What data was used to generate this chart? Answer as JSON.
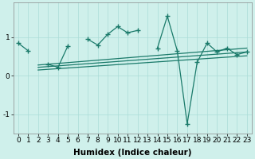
{
  "xlabel": "Humidex (Indice chaleur)",
  "x_data": [
    0,
    1,
    2,
    3,
    4,
    5,
    6,
    7,
    8,
    9,
    10,
    11,
    12,
    13,
    14,
    15,
    16,
    17,
    18,
    19,
    20,
    21,
    22,
    23
  ],
  "y_main": [
    0.85,
    0.65,
    null,
    0.3,
    0.22,
    0.78,
    null,
    0.95,
    0.8,
    1.08,
    1.28,
    1.12,
    1.18,
    null,
    0.72,
    1.55,
    0.65,
    -1.25,
    0.35,
    0.85,
    0.62,
    0.72,
    0.55,
    0.62
  ],
  "trend_lines": [
    {
      "x0": 2,
      "y0": 0.28,
      "x1": 23,
      "y1": 0.72
    },
    {
      "x0": 2,
      "y0": 0.22,
      "x1": 23,
      "y1": 0.62
    },
    {
      "x0": 2,
      "y0": 0.15,
      "x1": 23,
      "y1": 0.52
    }
  ],
  "ylim": [
    -1.5,
    1.9
  ],
  "yticks": [
    -1,
    0,
    1
  ],
  "xticks": [
    0,
    1,
    2,
    3,
    4,
    5,
    6,
    7,
    8,
    9,
    10,
    11,
    12,
    13,
    14,
    15,
    16,
    17,
    18,
    19,
    20,
    21,
    22,
    23
  ],
  "main_color": "#1a7a6a",
  "bg_color": "#cff0eb",
  "grid_color": "#aaddd7",
  "tick_fontsize": 6.5,
  "label_fontsize": 7.5
}
